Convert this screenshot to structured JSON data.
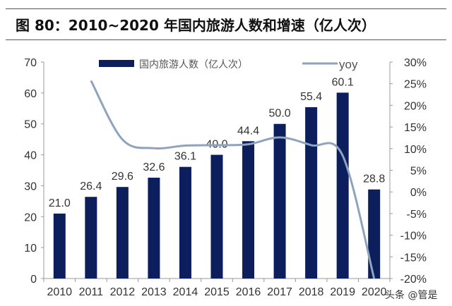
{
  "title": "图 80：2010~2020 年国内旅游人数和增速（亿人次）",
  "watermark": "头条 @管是",
  "chart_data": {
    "type": "bar",
    "title": "图 80：2010~2020 年国内旅游人数和增速（亿人次）",
    "categories": [
      "2010",
      "2011",
      "2012",
      "2013",
      "2014",
      "2015",
      "2016",
      "2017",
      "2018",
      "2019",
      "2020"
    ],
    "series": [
      {
        "name": "国内旅游人数（亿人次）",
        "type": "bar",
        "axis": "left",
        "color": "#0c1f5c",
        "values": [
          21.0,
          26.4,
          29.6,
          32.6,
          36.1,
          40.0,
          44.4,
          50.0,
          55.4,
          60.1,
          28.8
        ],
        "labels": [
          "21.0",
          "26.4",
          "29.6",
          "32.6",
          "36.1",
          "40.0",
          "44.4",
          "50.0",
          "55.4",
          "60.1",
          "28.8"
        ]
      },
      {
        "name": "yoy",
        "type": "line",
        "axis": "right",
        "color": "#8fa3bd",
        "values": [
          null,
          25.7,
          12.1,
          10.1,
          10.7,
          10.8,
          11.0,
          12.6,
          10.8,
          8.4,
          -52.1
        ]
      }
    ],
    "ylim_left": [
      0,
      70
    ],
    "yticks_left": [
      "0",
      "10",
      "20",
      "30",
      "40",
      "50",
      "60",
      "70"
    ],
    "ylim_right": [
      -20,
      30
    ],
    "yticks_right": [
      "-20%",
      "-15%",
      "-10%",
      "-5%",
      "0%",
      "5%",
      "10%",
      "15%",
      "20%",
      "25%",
      "30%"
    ],
    "legend": "top",
    "grid": false
  }
}
